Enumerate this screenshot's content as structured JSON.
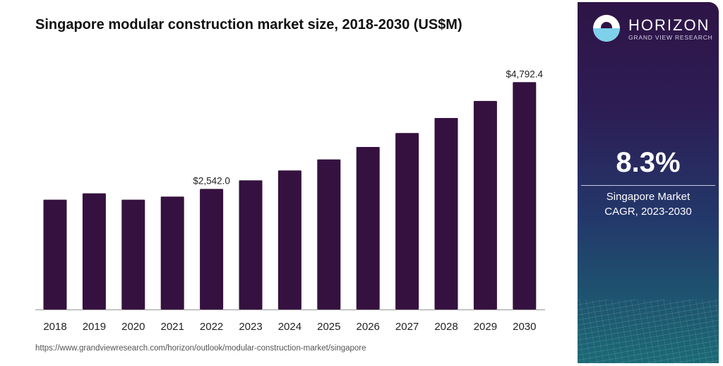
{
  "chart_data": {
    "type": "bar",
    "title": "Singapore modular construction market size, 2018-2030 (US$M)",
    "categories": [
      "2018",
      "2019",
      "2020",
      "2021",
      "2022",
      "2023",
      "2024",
      "2025",
      "2026",
      "2027",
      "2028",
      "2029",
      "2030"
    ],
    "values": [
      2314,
      2448,
      2314,
      2380,
      2542.0,
      2722,
      2931,
      3163,
      3427,
      3720,
      4038,
      4396,
      4792.4
    ],
    "data_labels": {
      "2022": "$2,542.0",
      "2030": "$4,792.4"
    },
    "ylim": [
      0,
      4792.4
    ],
    "grid": false,
    "bar_color": "#35113f"
  },
  "source": "https://www.grandviewresearch.com/horizon/outlook/modular-construction-market/singapore",
  "panel": {
    "brand": "HORIZON",
    "brand_sub": "GRAND VIEW RESEARCH",
    "cagr_value": "8.3%",
    "cagr_label_line1": "Singapore Market",
    "cagr_label_line2": "CAGR, 2023-2030"
  }
}
